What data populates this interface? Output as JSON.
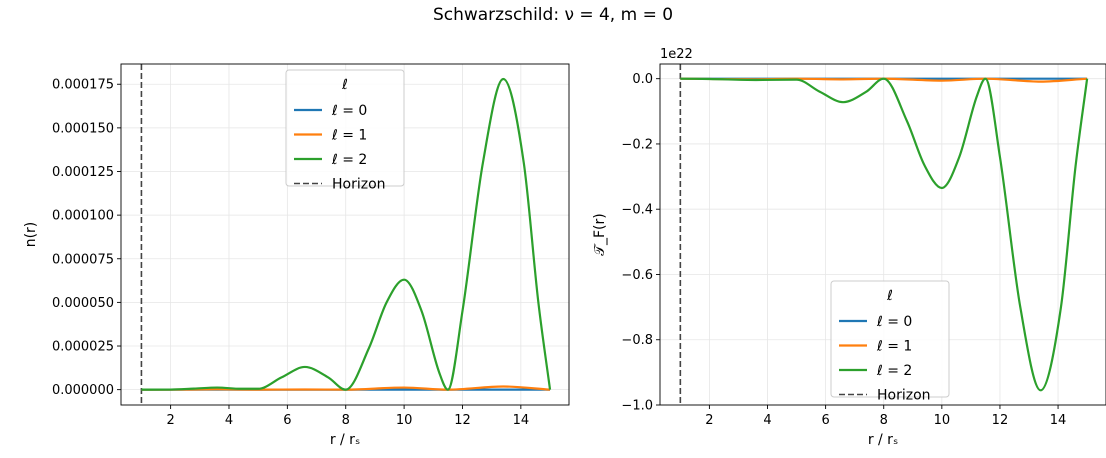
{
  "figure": {
    "suptitle": "Schwarzschild: ν = 4, m = 0"
  },
  "colors": {
    "series": [
      "#1f77b4",
      "#ff7f0e",
      "#2ca02c"
    ],
    "horizon": "#444444",
    "grid": "#e6e6e6",
    "legend_border": "#cccccc"
  },
  "chart_data": [
    {
      "type": "line",
      "title": "",
      "xlabel": "r / rₛ",
      "ylabel": "n(r)",
      "xlim": [
        0.3,
        15.65
      ],
      "ylim": [
        -8.8e-06,
        0.0001866
      ],
      "xticks": [
        2,
        4,
        6,
        8,
        10,
        12,
        14
      ],
      "yticks": [
        0,
        2.5e-05,
        5e-05,
        7.5e-05,
        0.0001,
        0.000125,
        0.00015,
        0.000175
      ],
      "ytick_labels": [
        "0.000000",
        "0.000025",
        "0.000050",
        "0.000075",
        "0.000100",
        "0.000125",
        "0.000150",
        "0.000175"
      ],
      "offset_label": "",
      "grid": true,
      "legend": {
        "title": "ℓ",
        "position": "upper center",
        "entries": [
          "ℓ = 0",
          "ℓ = 1",
          "ℓ = 2",
          "Horizon"
        ]
      },
      "vline": {
        "x": 1.0,
        "label": "Horizon",
        "style": "dashed"
      },
      "series": [
        {
          "name": "ℓ = 0",
          "x": [
            1,
            15
          ],
          "y": [
            0,
            0
          ]
        },
        {
          "name": "ℓ = 1",
          "x": [
            1,
            2,
            3.6,
            5,
            6.6,
            8,
            10,
            11.5,
            13.4,
            15
          ],
          "y": [
            0,
            0,
            2e-07,
            0,
            1e-07,
            0,
            1.2e-06,
            0,
            1.8e-06,
            0
          ]
        },
        {
          "name": "ℓ = 2",
          "x": [
            1,
            2,
            2.8,
            3.6,
            4.4,
            5.0,
            5.8,
            6.6,
            7.4,
            8.0,
            8.8,
            9.4,
            10.0,
            10.6,
            11.2,
            11.5,
            12.0,
            12.7,
            13.4,
            14.1,
            14.6,
            15.0
          ],
          "y": [
            0,
            5e-08,
            6e-07,
            1.2e-06,
            5e-07,
            5e-07,
            7e-06,
            1.3e-05,
            7e-06,
            0,
            2.4e-05,
            5e-05,
            6.3e-05,
            4.5e-05,
            1e-05,
            0,
            4.5e-05,
            0.00013,
            0.000178,
            0.00013,
            5e-05,
            0
          ]
        }
      ]
    },
    {
      "type": "line",
      "title": "",
      "xlabel": "r / rₛ",
      "ylabel": "𝒯_F(r)",
      "xlim": [
        0.3,
        15.65
      ],
      "ylim": [
        -1.0,
        0.045
      ],
      "xticks": [
        2,
        4,
        6,
        8,
        10,
        12,
        14
      ],
      "yticks": [
        0,
        -0.2,
        -0.4,
        -0.6,
        -0.8,
        -1.0
      ],
      "ytick_labels": [
        "0.0",
        "−0.2",
        "−0.4",
        "−0.6",
        "−0.8",
        "−1.0"
      ],
      "offset_label": "1e22",
      "grid": true,
      "legend": {
        "title": "ℓ",
        "position": "lower center",
        "entries": [
          "ℓ = 0",
          "ℓ = 1",
          "ℓ = 2",
          "Horizon"
        ]
      },
      "vline": {
        "x": 1.0,
        "label": "Horizon",
        "style": "dashed"
      },
      "series": [
        {
          "name": "ℓ = 0",
          "x": [
            1,
            15
          ],
          "y": [
            0,
            0
          ]
        },
        {
          "name": "ℓ = 1",
          "x": [
            1,
            3.6,
            5,
            6.6,
            8,
            10,
            11.5,
            13.4,
            15
          ],
          "y": [
            0,
            -0.002,
            0,
            -0.002,
            0,
            -0.006,
            0,
            -0.009,
            0
          ]
        },
        {
          "name": "ℓ = 2",
          "x": [
            1,
            2,
            3.6,
            5.0,
            5.8,
            6.6,
            7.4,
            8.0,
            8.8,
            9.4,
            10.0,
            10.6,
            11.2,
            11.5,
            12.0,
            12.7,
            13.4,
            14.1,
            14.6,
            15.0
          ],
          "y": [
            0,
            -0.001,
            -0.004,
            -0.003,
            -0.04,
            -0.072,
            -0.04,
            0,
            -0.13,
            -0.265,
            -0.335,
            -0.24,
            -0.055,
            0,
            -0.24,
            -0.7,
            -0.955,
            -0.7,
            -0.27,
            0
          ]
        }
      ]
    }
  ]
}
